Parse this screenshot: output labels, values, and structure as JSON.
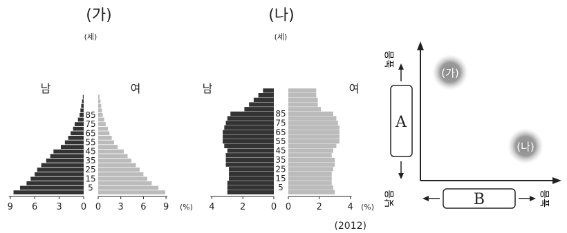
{
  "chart_data": [
    {
      "type": "bar",
      "subtype": "population-pyramid",
      "title": "(가)",
      "age_unit": "(세)",
      "age_tick_labels": [
        "5",
        "15",
        "25",
        "35",
        "45",
        "55",
        "65",
        "75",
        "85"
      ],
      "x_unit": "(%)",
      "male_label": "남",
      "female_label": "여",
      "male_axis": {
        "ticks": [
          "9",
          "6",
          "3",
          "0"
        ],
        "range": [
          0,
          9
        ]
      },
      "female_axis": {
        "ticks": [
          "0",
          "3",
          "6",
          "9"
        ],
        "range": [
          0,
          9
        ]
      },
      "male_color": "#333333",
      "female_color": "#bbbbbb",
      "male": [
        8.6,
        7.8,
        7.0,
        6.5,
        6.0,
        5.7,
        5.2,
        4.6,
        4.1,
        3.7,
        2.8,
        2.3,
        1.9,
        1.6,
        1.3,
        1.1,
        0.7,
        0.5,
        0.4,
        0.3,
        0.2,
        0.1
      ],
      "female": [
        8.9,
        8.0,
        7.1,
        6.5,
        6.0,
        5.5,
        5.0,
        4.4,
        3.9,
        3.4,
        2.6,
        2.1,
        1.8,
        1.5,
        1.3,
        1.0,
        0.8,
        0.6,
        0.5,
        0.4,
        0.3,
        0.2
      ]
    },
    {
      "type": "bar",
      "subtype": "population-pyramid",
      "title": "(나)",
      "age_unit": "(세)",
      "age_tick_labels": [
        "5",
        "15",
        "25",
        "35",
        "45",
        "55",
        "65",
        "75",
        "85"
      ],
      "x_unit": "(%)",
      "male_label": "남",
      "female_label": "여",
      "male_axis": {
        "ticks": [
          "4",
          "2",
          "0"
        ],
        "range": [
          0,
          4
        ]
      },
      "female_axis": {
        "ticks": [
          "0",
          "2",
          "4"
        ],
        "range": [
          0,
          4
        ]
      },
      "year_label": "(2012)",
      "male_color": "#333333",
      "female_color": "#bbbbbb",
      "male": [
        3.0,
        3.0,
        3.0,
        2.9,
        2.9,
        2.9,
        3.1,
        3.1,
        3.1,
        3.0,
        3.2,
        3.3,
        3.3,
        3.3,
        3.2,
        3.1,
        3.0,
        2.8,
        1.9,
        1.6,
        1.3,
        1.0,
        0.7
      ],
      "female": [
        3.0,
        2.9,
        2.8,
        2.8,
        2.8,
        2.9,
        3.0,
        3.0,
        2.8,
        2.9,
        3.1,
        3.3,
        3.3,
        3.3,
        3.3,
        3.2,
        3.1,
        2.9,
        2.1,
        1.9,
        1.9,
        1.8,
        1.8
      ]
    }
  ],
  "diagram": {
    "label_a": "A",
    "label_b": "B",
    "point_ga": "(가)",
    "point_na": "(나)",
    "y_high": "높음",
    "x_low": "낮음",
    "x_high": "높음"
  }
}
